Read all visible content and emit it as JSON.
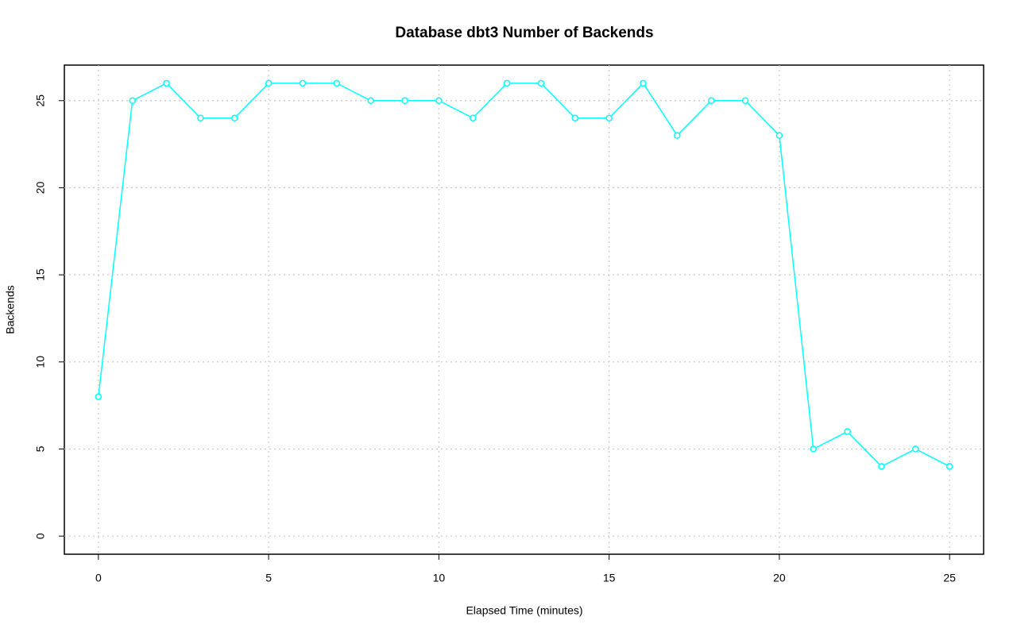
{
  "chart_data": {
    "type": "line",
    "title": "Database dbt3 Number of Backends",
    "x_label": "Elapsed Time (minutes)",
    "y_label": "Backends",
    "x": [
      0,
      1,
      2,
      3,
      4,
      5,
      6,
      7,
      8,
      9,
      10,
      11,
      12,
      13,
      14,
      15,
      16,
      17,
      18,
      19,
      20,
      21,
      22,
      23,
      24,
      25
    ],
    "series": [
      {
        "name": "Backends",
        "color": "#00ffff",
        "values": [
          8,
          25,
          26,
          24,
          24,
          26,
          26,
          26,
          25,
          25,
          25,
          24,
          26,
          26,
          24,
          24,
          26,
          23,
          25,
          25,
          23,
          5,
          6,
          4,
          5,
          4
        ]
      }
    ],
    "xlim": [
      -1,
      26
    ],
    "ylim": [
      -1.04,
      27.04
    ],
    "xticks": [
      0,
      5,
      10,
      15,
      20,
      25
    ],
    "yticks": [
      0,
      5,
      10,
      15,
      20,
      25
    ],
    "grid": true
  }
}
